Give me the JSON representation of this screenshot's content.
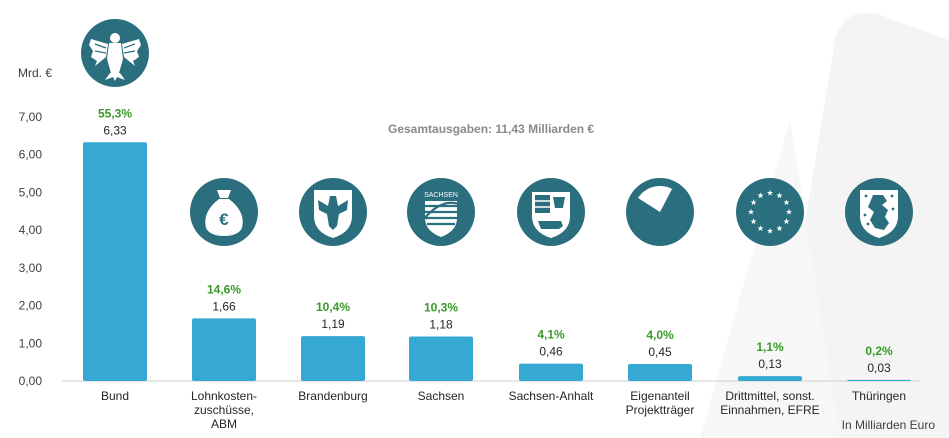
{
  "colors": {
    "bar": "#35a8d3",
    "icon_circle": "#2b6f7f",
    "percent": "#3a9a2a",
    "note": "#8a8a8a",
    "axis": "#cfcfcf"
  },
  "y_unit": "Mrd. €",
  "note": "Gesamtausgaben: 11,43 Milliarden €",
  "unit_note": "In Milliarden Euro",
  "icons": [
    "eagle-icon",
    "money-bag-icon",
    "brandenburg-eagle-icon",
    "saxony-coat-of-arms-icon",
    "saxony-anhalt-coat-of-arms-icon",
    "pie-slice-icon",
    "eu-stars-icon",
    "thuringia-lion-icon"
  ],
  "chart_data": {
    "type": "bar",
    "categories": [
      [
        "Bund"
      ],
      [
        "Lohnkosten-",
        "zuschüsse,",
        "ABM"
      ],
      [
        "Brandenburg"
      ],
      [
        "Sachsen"
      ],
      [
        "Sachsen-Anhalt"
      ],
      [
        "Eigenanteil",
        "Projektträger"
      ],
      [
        "Drittmittel, sonst.",
        "Einnahmen, EFRE"
      ],
      [
        "Thüringen"
      ]
    ],
    "values": [
      6.33,
      1.66,
      1.19,
      1.18,
      0.46,
      0.45,
      0.13,
      0.03
    ],
    "value_labels": [
      "6,33",
      "1,66",
      "1,19",
      "1,18",
      "0,46",
      "0,45",
      "0,13",
      "0,03"
    ],
    "percent_labels": [
      "55,3%",
      "14,6%",
      "10,4%",
      "10,3%",
      "4,1%",
      "4,0%",
      "1,1%",
      "0,2%"
    ],
    "ylim": [
      0,
      7
    ],
    "yticks": [
      0,
      1,
      2,
      3,
      4,
      5,
      6,
      7
    ],
    "ytick_labels": [
      "0,00",
      "1,00",
      "2,00",
      "3,00",
      "4,00",
      "5,00",
      "6,00",
      "7,00"
    ],
    "grid": false,
    "legend": "none"
  }
}
